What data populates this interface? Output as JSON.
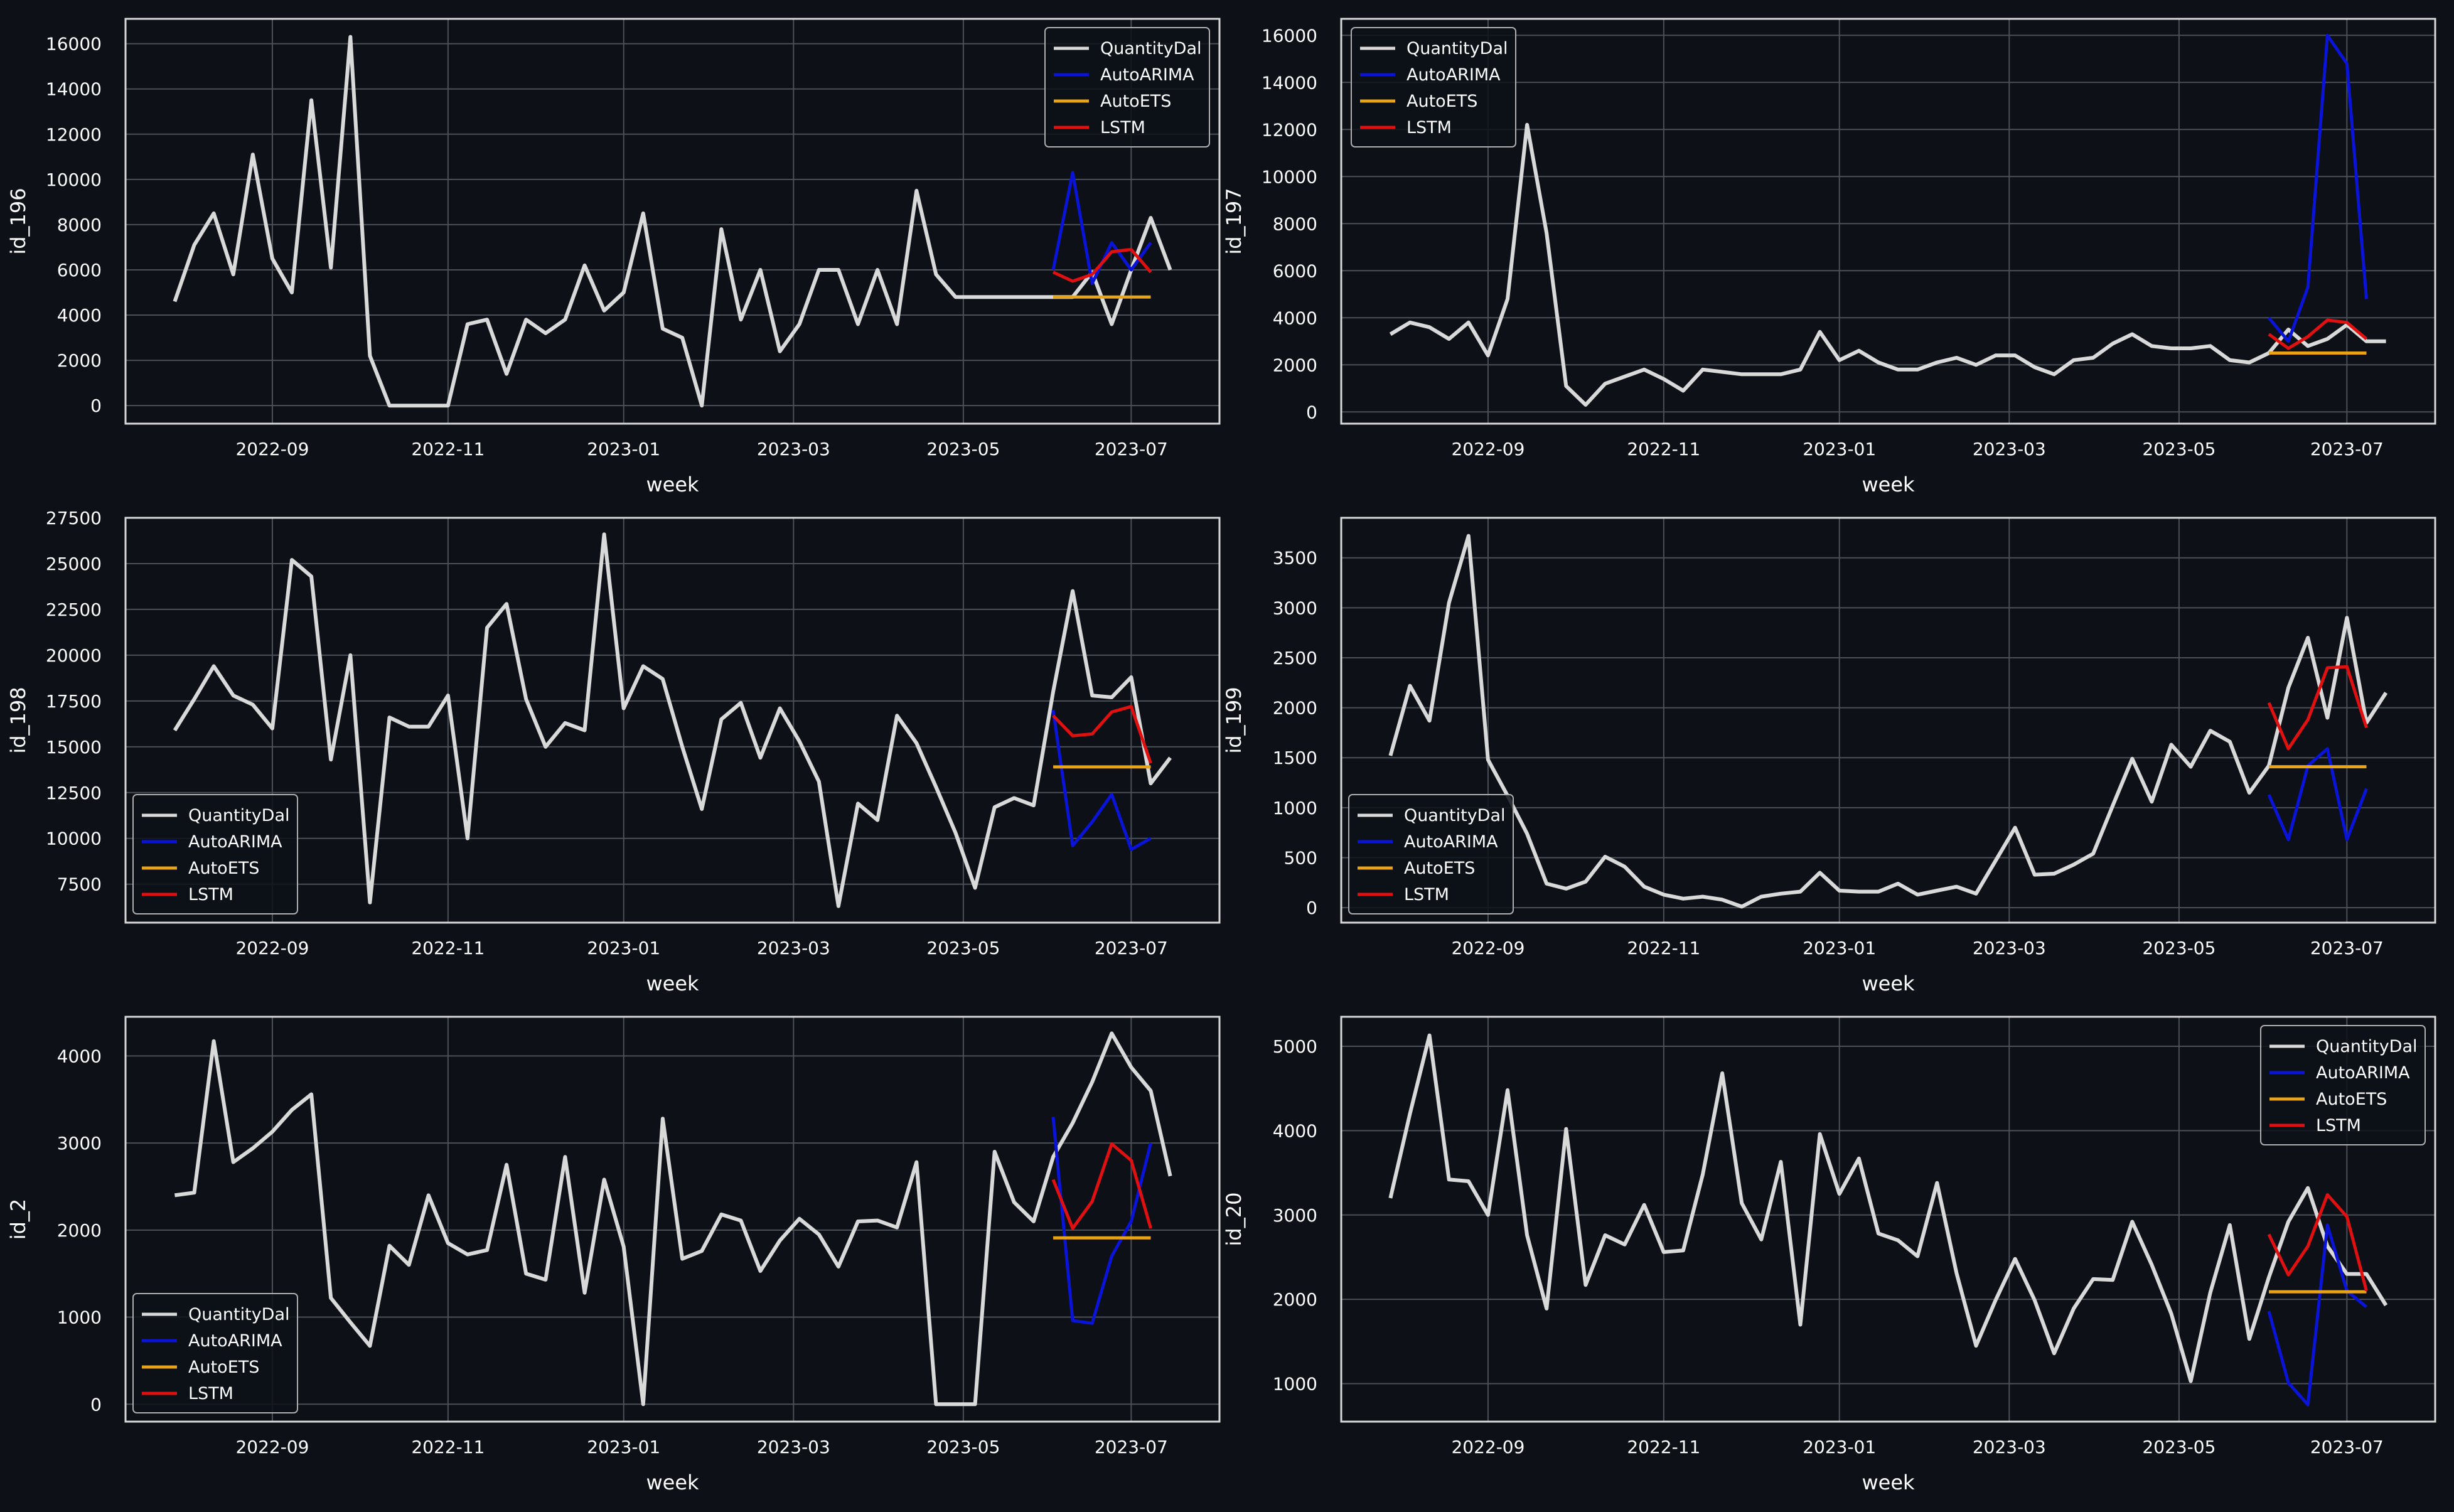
{
  "colors": {
    "background": "#0d1117",
    "axes_frame": "#d8d8d8",
    "grid": "#4a4f58",
    "QuantityDal": "#d9d9d9",
    "AutoARIMA": "#0a14d8",
    "AutoETS": "#e8a317",
    "LSTM": "#e01010"
  },
  "chart_data": [
    {
      "type": "line",
      "xlabel": "week",
      "ylabel": "id_196",
      "x_ticks": [
        "2022-09",
        "2022-11",
        "2023-01",
        "2023-03",
        "2023-05",
        "2023-07"
      ],
      "y_ticks": [
        "0",
        "2000",
        "4000",
        "6000",
        "8000",
        "10000",
        "12000",
        "14000",
        "16000"
      ],
      "ylim": [
        -800,
        17100
      ],
      "grid": true,
      "legend": {
        "position": "top-right",
        "entries": [
          "QuantityDal",
          "AutoARIMA",
          "AutoETS",
          "LSTM"
        ]
      },
      "series": [
        {
          "name": "QuantityDal",
          "values": [
            4600,
            7100,
            8500,
            5800,
            11100,
            6500,
            5000,
            13500,
            6100,
            16300,
            2200,
            0,
            0,
            0,
            0,
            3600,
            3800,
            1400,
            3800,
            3200,
            3800,
            6200,
            4200,
            5000,
            8500,
            3400,
            3000,
            0,
            7800,
            3800,
            6000,
            2400,
            3600,
            6000,
            6000,
            3600,
            6000,
            3600,
            9500,
            5800,
            4800,
            4800,
            4800,
            4800,
            4800,
            4800,
            4800,
            5900,
            3600,
            6000,
            8300,
            6000
          ]
        },
        {
          "name": "AutoARIMA",
          "start": 45,
          "values": [
            6000,
            10300,
            5400,
            7200,
            6000,
            7200
          ]
        },
        {
          "name": "AutoETS",
          "start": 45,
          "values": [
            4800,
            4800,
            4800,
            4800,
            4800,
            4800
          ]
        },
        {
          "name": "LSTM",
          "start": 45,
          "values": [
            5900,
            5500,
            5800,
            6800,
            6900,
            5900
          ]
        }
      ]
    },
    {
      "type": "line",
      "xlabel": "week",
      "ylabel": "id_197",
      "x_ticks": [
        "2022-09",
        "2022-11",
        "2023-01",
        "2023-03",
        "2023-05",
        "2023-07"
      ],
      "y_ticks": [
        "0",
        "2000",
        "4000",
        "6000",
        "8000",
        "10000",
        "12000",
        "14000",
        "16000"
      ],
      "ylim": [
        -500,
        16700
      ],
      "grid": true,
      "legend": {
        "position": "top-left",
        "entries": [
          "QuantityDal",
          "AutoARIMA",
          "AutoETS",
          "LSTM"
        ]
      },
      "series": [
        {
          "name": "QuantityDal",
          "values": [
            3300,
            3800,
            3600,
            3100,
            3800,
            2400,
            4800,
            12200,
            7600,
            1100,
            300,
            1200,
            1500,
            1800,
            1400,
            900,
            1800,
            1700,
            1600,
            1600,
            1600,
            1800,
            3400,
            2200,
            2600,
            2100,
            1800,
            1800,
            2100,
            2300,
            2000,
            2400,
            2400,
            1900,
            1600,
            2200,
            2300,
            2900,
            3300,
            2800,
            2700,
            2700,
            2800,
            2200,
            2100,
            2500,
            3500,
            2800,
            3100,
            3700,
            3000,
            3000
          ]
        },
        {
          "name": "AutoARIMA",
          "start": 45,
          "values": [
            4000,
            3000,
            5300,
            16000,
            14800,
            4800
          ]
        },
        {
          "name": "AutoETS",
          "start": 45,
          "values": [
            2500,
            2500,
            2500,
            2500,
            2500,
            2500
          ]
        },
        {
          "name": "LSTM",
          "start": 45,
          "values": [
            3300,
            2700,
            3200,
            3900,
            3800,
            3100
          ]
        }
      ]
    },
    {
      "type": "line",
      "xlabel": "week",
      "ylabel": "id_198",
      "x_ticks": [
        "2022-09",
        "2022-11",
        "2023-01",
        "2023-03",
        "2023-05",
        "2023-07"
      ],
      "y_ticks": [
        "7500",
        "10000",
        "12500",
        "15000",
        "17500",
        "20000",
        "22500",
        "25000",
        "27500"
      ],
      "ylim": [
        5400,
        27500
      ],
      "grid": true,
      "legend": {
        "position": "bottom-left",
        "entries": [
          "QuantityDal",
          "AutoARIMA",
          "AutoETS",
          "LSTM"
        ]
      },
      "series": [
        {
          "name": "QuantityDal",
          "values": [
            15900,
            17600,
            19400,
            17800,
            17300,
            16000,
            25200,
            24300,
            14300,
            20000,
            6500,
            16600,
            16100,
            16100,
            17800,
            10000,
            21500,
            22800,
            17600,
            15000,
            16300,
            15900,
            26600,
            17100,
            19400,
            18700,
            15000,
            11600,
            16500,
            17400,
            14400,
            17100,
            15300,
            13100,
            6300,
            11900,
            11000,
            16700,
            15200,
            12800,
            10300,
            7300,
            11700,
            12200,
            11800,
            18000,
            23500,
            17800,
            17700,
            18800,
            13000,
            14400
          ]
        },
        {
          "name": "AutoARIMA",
          "start": 45,
          "values": [
            17000,
            9600,
            10900,
            12400,
            9400,
            10000
          ]
        },
        {
          "name": "AutoETS",
          "start": 45,
          "values": [
            13900,
            13900,
            13900,
            13900,
            13900,
            13900
          ]
        },
        {
          "name": "LSTM",
          "start": 45,
          "values": [
            16700,
            15600,
            15700,
            16900,
            17200,
            14100
          ]
        }
      ]
    },
    {
      "type": "line",
      "xlabel": "week",
      "ylabel": "id_199",
      "x_ticks": [
        "2022-09",
        "2022-11",
        "2023-01",
        "2023-03",
        "2023-05",
        "2023-07"
      ],
      "y_ticks": [
        "0",
        "500",
        "1000",
        "1500",
        "2000",
        "2500",
        "3000",
        "3500"
      ],
      "ylim": [
        -150,
        3900
      ],
      "grid": true,
      "legend": {
        "position": "bottom-left",
        "entries": [
          "QuantityDal",
          "AutoARIMA",
          "AutoETS",
          "LSTM"
        ]
      },
      "series": [
        {
          "name": "QuantityDal",
          "values": [
            1520,
            2220,
            1870,
            3050,
            3720,
            1480,
            1120,
            740,
            240,
            190,
            260,
            510,
            410,
            210,
            130,
            90,
            110,
            80,
            10,
            110,
            140,
            160,
            350,
            170,
            160,
            160,
            240,
            130,
            170,
            210,
            140,
            470,
            800,
            330,
            340,
            430,
            540,
            1020,
            1490,
            1060,
            1630,
            1410,
            1770,
            1660,
            1150,
            1420,
            2200,
            2700,
            1900,
            2900,
            1850,
            2150
          ]
        },
        {
          "name": "AutoARIMA",
          "start": 45,
          "values": [
            1130,
            680,
            1420,
            1590,
            680,
            1190
          ]
        },
        {
          "name": "AutoETS",
          "start": 45,
          "values": [
            1410,
            1410,
            1410,
            1410,
            1410,
            1410
          ]
        },
        {
          "name": "LSTM",
          "start": 45,
          "values": [
            2050,
            1590,
            1880,
            2400,
            2410,
            1800
          ]
        }
      ]
    },
    {
      "type": "line",
      "xlabel": "week",
      "ylabel": "id_2",
      "x_ticks": [
        "2022-09",
        "2022-11",
        "2023-01",
        "2023-03",
        "2023-05",
        "2023-07"
      ],
      "y_ticks": [
        "0",
        "1000",
        "2000",
        "3000",
        "4000"
      ],
      "ylim": [
        -200,
        4450
      ],
      "grid": true,
      "legend": {
        "position": "bottom-left",
        "entries": [
          "QuantityDal",
          "AutoARIMA",
          "AutoETS",
          "LSTM"
        ]
      },
      "series": [
        {
          "name": "QuantityDal",
          "values": [
            2400,
            2430,
            4170,
            2780,
            2940,
            3130,
            3380,
            3560,
            1220,
            940,
            670,
            1820,
            1600,
            2400,
            1850,
            1720,
            1770,
            2750,
            1500,
            1430,
            2840,
            1280,
            2580,
            1810,
            0,
            3280,
            1670,
            1760,
            2180,
            2110,
            1530,
            1880,
            2130,
            1950,
            1580,
            2100,
            2110,
            2030,
            2780,
            0,
            0,
            0,
            2900,
            2320,
            2100,
            2840,
            3230,
            3700,
            4260,
            3870,
            3600,
            2620
          ]
        },
        {
          "name": "AutoARIMA",
          "start": 45,
          "values": [
            3300,
            960,
            930,
            1700,
            2100,
            3000
          ]
        },
        {
          "name": "AutoETS",
          "start": 45,
          "values": [
            1910,
            1910,
            1910,
            1910,
            1910,
            1910
          ]
        },
        {
          "name": "LSTM",
          "start": 45,
          "values": [
            2580,
            2020,
            2330,
            2990,
            2800,
            2020
          ]
        }
      ]
    },
    {
      "type": "line",
      "xlabel": "week",
      "ylabel": "id_20",
      "x_ticks": [
        "2022-09",
        "2022-11",
        "2023-01",
        "2023-03",
        "2023-05",
        "2023-07"
      ],
      "y_ticks": [
        "1000",
        "2000",
        "3000",
        "4000",
        "5000"
      ],
      "ylim": [
        550,
        5350
      ],
      "grid": true,
      "legend": {
        "position": "top-right",
        "entries": [
          "QuantityDal",
          "AutoARIMA",
          "AutoETS",
          "LSTM"
        ]
      },
      "series": [
        {
          "name": "QuantityDal",
          "values": [
            3200,
            4200,
            5130,
            3420,
            3400,
            3000,
            4480,
            2760,
            1890,
            4020,
            2170,
            2760,
            2650,
            3120,
            2560,
            2580,
            3480,
            4680,
            3140,
            2710,
            3630,
            1700,
            3960,
            3250,
            3670,
            2780,
            2700,
            2510,
            3380,
            2310,
            1450,
            1990,
            2480,
            1990,
            1360,
            1890,
            2240,
            2230,
            2920,
            2410,
            1830,
            1030,
            2080,
            2880,
            1530,
            2260,
            2920,
            3320,
            2630,
            2300,
            2300,
            1930
          ]
        },
        {
          "name": "AutoARIMA",
          "start": 45,
          "values": [
            1860,
            1010,
            750,
            2880,
            2100,
            1910
          ]
        },
        {
          "name": "AutoETS",
          "start": 45,
          "values": [
            2090,
            2090,
            2090,
            2090,
            2090,
            2090
          ]
        },
        {
          "name": "LSTM",
          "start": 45,
          "values": [
            2770,
            2290,
            2630,
            3240,
            2980,
            2100
          ]
        }
      ]
    }
  ]
}
